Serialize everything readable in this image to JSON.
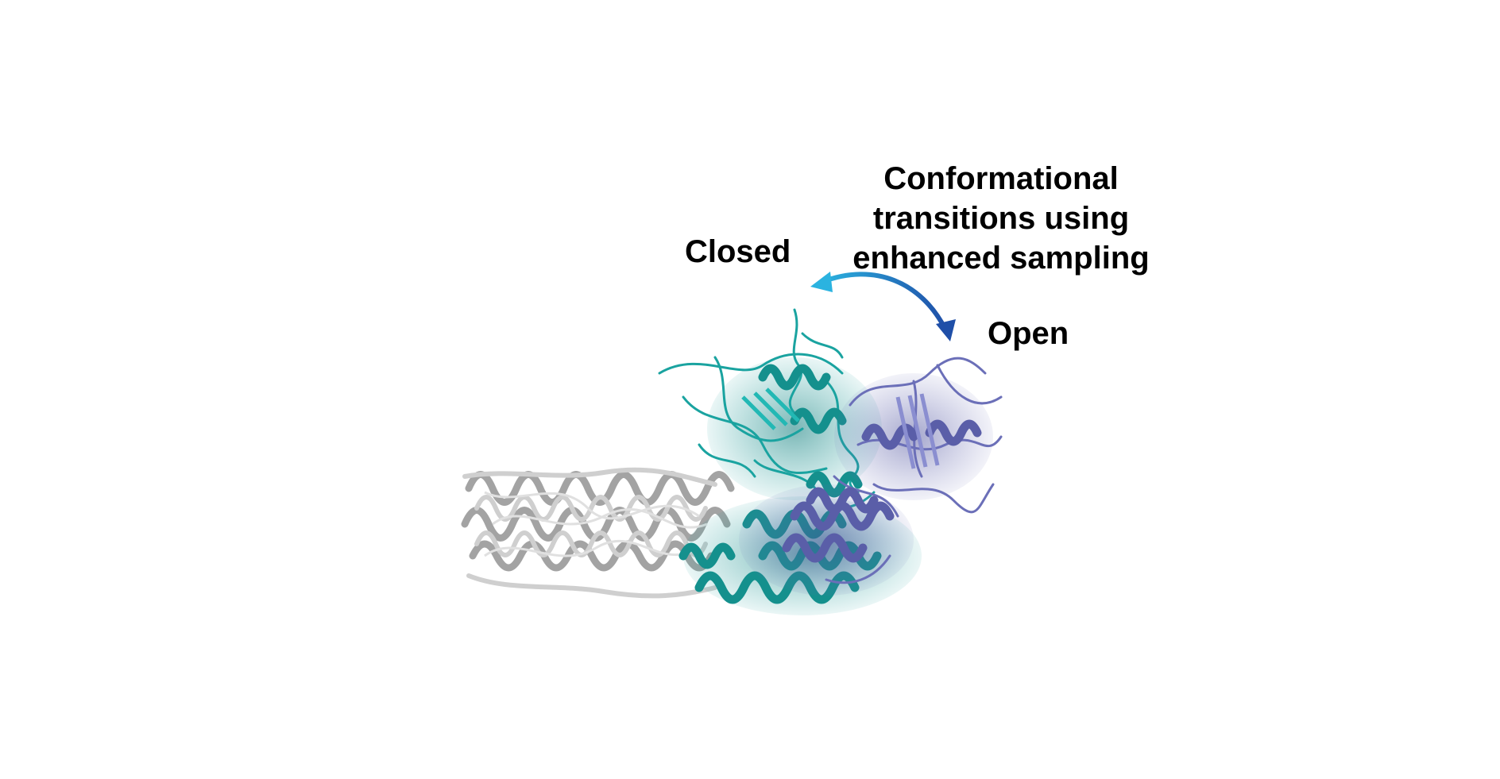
{
  "figure": {
    "title_lines": [
      "Conformational",
      "transitions using",
      "enhanced sampling"
    ],
    "closed_label": "Closed",
    "open_label": "Open",
    "colors": {
      "closed_state": "#1aa3a0",
      "open_state": "#6b6fb8",
      "static_domain": "#b8b8b8",
      "arrow_start": "#2bb3e0",
      "arrow_end": "#1f4fa8",
      "text": "#000000"
    }
  }
}
